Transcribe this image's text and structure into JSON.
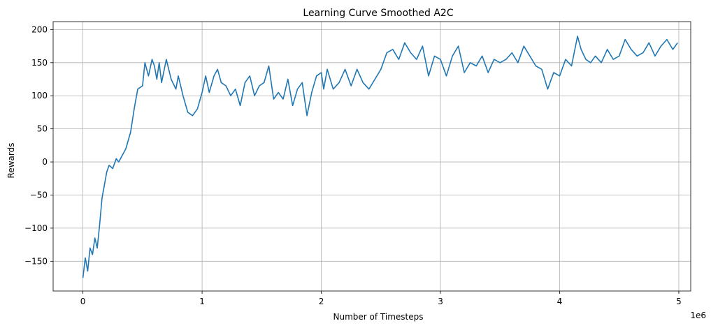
{
  "chart_data": {
    "type": "line",
    "title": "Learning Curve Smoothed A2C",
    "xlabel": "Number of Timesteps",
    "ylabel": "Rewards",
    "x_offset_label": "1e6",
    "xlim": [
      -0.25,
      5.1
    ],
    "ylim": [
      -195,
      212
    ],
    "xticks": [
      0,
      1,
      2,
      3,
      4,
      5
    ],
    "xtick_labels": [
      "0",
      "1",
      "2",
      "3",
      "4",
      "5"
    ],
    "yticks": [
      -150,
      -100,
      -50,
      0,
      50,
      100,
      150,
      200
    ],
    "ytick_labels": [
      "−150",
      "−100",
      "−50",
      "0",
      "50",
      "100",
      "150",
      "200"
    ],
    "grid": true,
    "series": [
      {
        "color": "#1f77b4",
        "x": [
          0.0,
          0.02,
          0.04,
          0.06,
          0.08,
          0.1,
          0.12,
          0.14,
          0.16,
          0.18,
          0.2,
          0.22,
          0.25,
          0.28,
          0.3,
          0.33,
          0.36,
          0.4,
          0.43,
          0.46,
          0.5,
          0.52,
          0.55,
          0.58,
          0.6,
          0.62,
          0.64,
          0.66,
          0.7,
          0.74,
          0.78,
          0.8,
          0.84,
          0.88,
          0.92,
          0.96,
          1.0,
          1.03,
          1.06,
          1.1,
          1.13,
          1.16,
          1.2,
          1.24,
          1.28,
          1.32,
          1.36,
          1.4,
          1.44,
          1.48,
          1.52,
          1.56,
          1.6,
          1.64,
          1.68,
          1.72,
          1.76,
          1.8,
          1.84,
          1.88,
          1.92,
          1.96,
          2.0,
          2.02,
          2.05,
          2.1,
          2.15,
          2.2,
          2.25,
          2.3,
          2.35,
          2.4,
          2.45,
          2.5,
          2.55,
          2.6,
          2.65,
          2.7,
          2.75,
          2.8,
          2.85,
          2.9,
          2.95,
          3.0,
          3.05,
          3.1,
          3.15,
          3.2,
          3.25,
          3.3,
          3.35,
          3.4,
          3.45,
          3.5,
          3.55,
          3.6,
          3.65,
          3.7,
          3.75,
          3.8,
          3.85,
          3.9,
          3.95,
          4.0,
          4.05,
          4.1,
          4.15,
          4.18,
          4.22,
          4.26,
          4.3,
          4.35,
          4.4,
          4.45,
          4.5,
          4.55,
          4.6,
          4.65,
          4.7,
          4.75,
          4.8,
          4.85,
          4.9,
          4.95,
          4.99
        ],
        "y": [
          -175,
          -145,
          -165,
          -130,
          -140,
          -115,
          -130,
          -95,
          -55,
          -35,
          -15,
          -5,
          -10,
          5,
          0,
          10,
          20,
          45,
          80,
          110,
          115,
          150,
          130,
          155,
          145,
          125,
          150,
          120,
          155,
          125,
          110,
          130,
          100,
          75,
          70,
          80,
          105,
          130,
          105,
          130,
          140,
          120,
          115,
          100,
          110,
          85,
          120,
          130,
          100,
          115,
          120,
          145,
          95,
          105,
          95,
          125,
          85,
          110,
          120,
          70,
          105,
          130,
          135,
          110,
          140,
          110,
          120,
          140,
          115,
          140,
          120,
          110,
          125,
          140,
          165,
          170,
          155,
          180,
          165,
          155,
          175,
          130,
          160,
          155,
          130,
          160,
          175,
          135,
          150,
          145,
          160,
          135,
          155,
          150,
          155,
          165,
          150,
          175,
          160,
          145,
          140,
          110,
          135,
          130,
          155,
          145,
          190,
          170,
          155,
          150,
          160,
          150,
          170,
          155,
          160,
          185,
          170,
          160,
          165,
          180,
          160,
          175,
          185,
          170,
          180
        ]
      }
    ]
  }
}
